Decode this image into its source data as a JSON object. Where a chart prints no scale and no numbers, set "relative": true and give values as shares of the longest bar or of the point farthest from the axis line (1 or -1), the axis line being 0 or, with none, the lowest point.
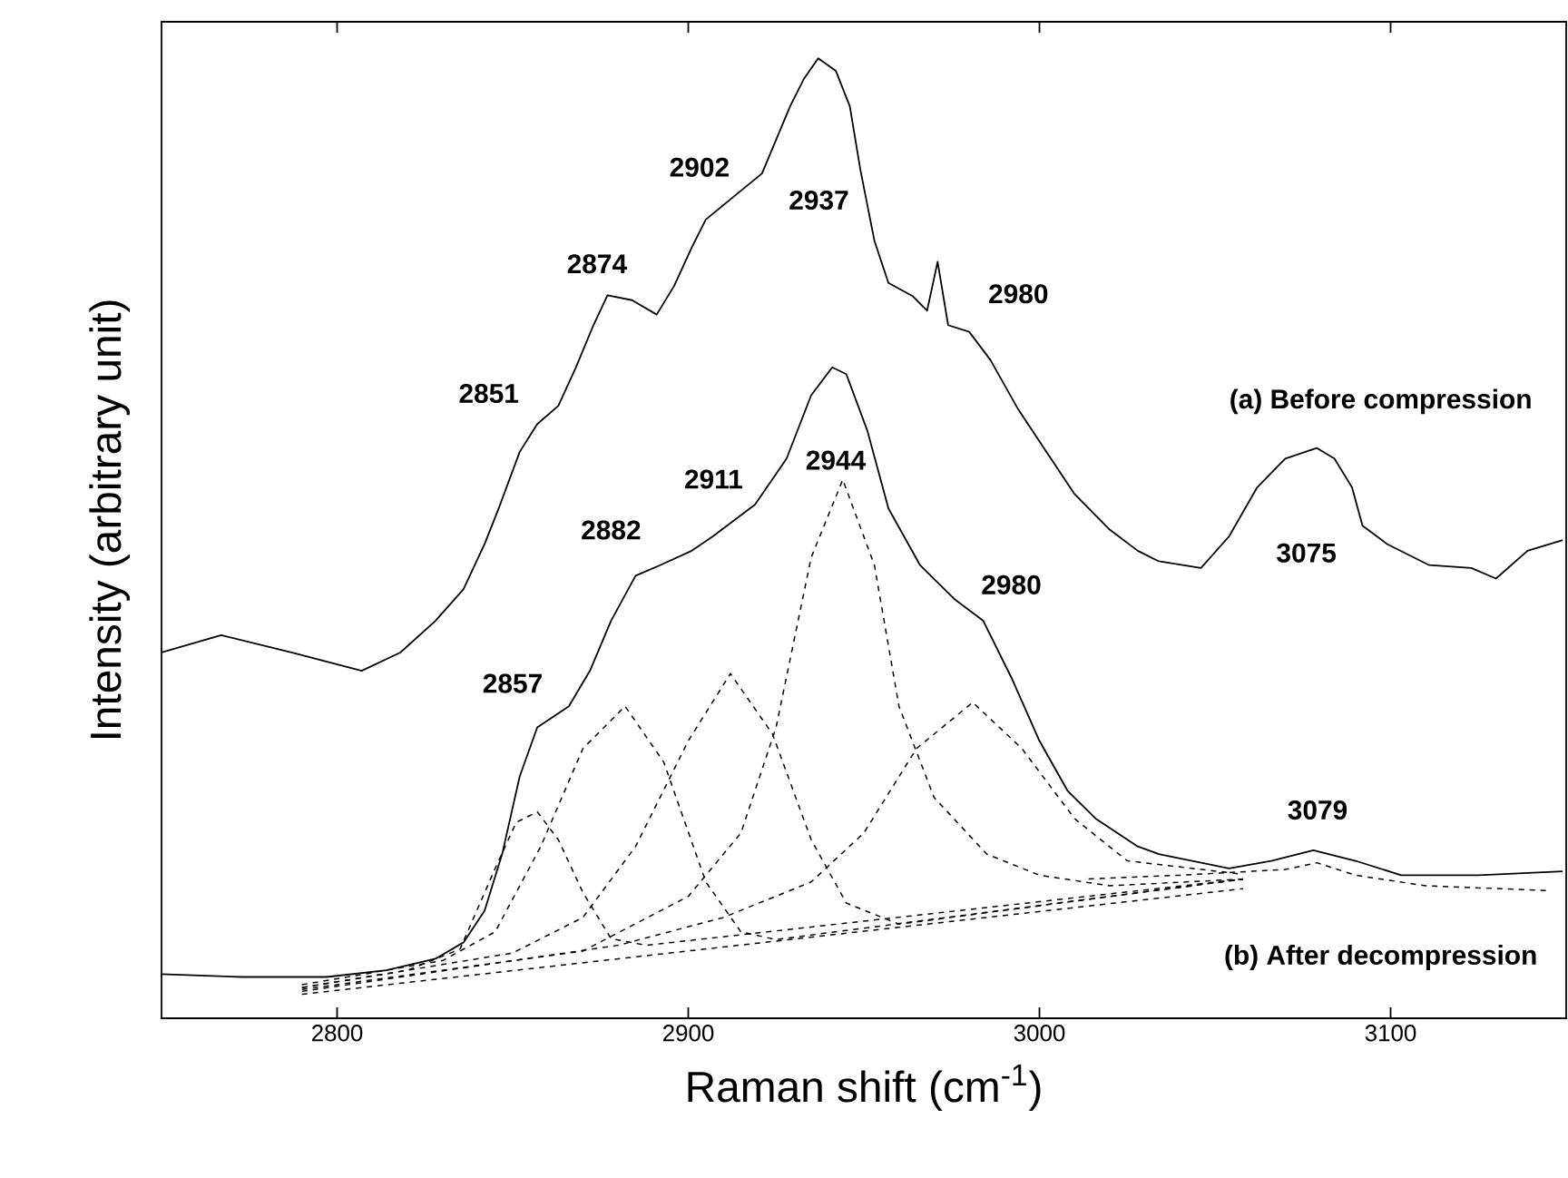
{
  "chart_data": {
    "type": "line",
    "relative": true,
    "xlabel": "Raman shift (cm$^{-1}$)",
    "ylabel": "Intensity (arbitrary unit)",
    "xlim": [
      2750,
      3150
    ],
    "xticks": [
      2800,
      2900,
      3000,
      3100
    ],
    "tick_labels": "x",
    "series": [
      {
        "color": "#000000",
        "line_style": "solid",
        "x": [
          2750,
          2767,
          2787,
          2807,
          2818,
          2828,
          2836,
          2842,
          2846,
          2852,
          2857,
          2863,
          2868,
          2873,
          2877,
          2884,
          2891,
          2896,
          2901,
          2905,
          2915,
          2921,
          2929,
          2933,
          2937,
          2942,
          2946,
          2949,
          2953,
          2957,
          2964,
          2968,
          2971,
          2974,
          2980,
          2986,
          2994,
          3002,
          3010,
          3020,
          3028,
          3034,
          3046,
          3054,
          3062,
          3070,
          3079,
          3084,
          3089,
          3092,
          3099,
          3111,
          3123,
          3130,
          3139,
          3149
        ],
        "values": [
          0.381,
          0.399,
          0.381,
          0.362,
          0.381,
          0.414,
          0.447,
          0.494,
          0.531,
          0.59,
          0.619,
          0.638,
          0.678,
          0.722,
          0.753,
          0.748,
          0.733,
          0.763,
          0.803,
          0.832,
          0.862,
          0.88,
          0.95,
          0.979,
          1.0,
          0.987,
          0.95,
          0.884,
          0.81,
          0.766,
          0.752,
          0.737,
          0.788,
          0.722,
          0.715,
          0.686,
          0.634,
          0.59,
          0.546,
          0.509,
          0.487,
          0.476,
          0.469,
          0.502,
          0.553,
          0.583,
          0.594,
          0.583,
          0.553,
          0.513,
          0.494,
          0.472,
          0.469,
          0.458,
          0.487,
          0.498
        ]
      },
      {
        "color": "#000000",
        "line_style": "solid",
        "x": [
          2750,
          2773,
          2797,
          2814,
          2828,
          2836,
          2842,
          2847,
          2852,
          2857,
          2866,
          2872,
          2878,
          2885,
          2892,
          2901,
          2907,
          2919,
          2928,
          2935,
          2941,
          2945,
          2951,
          2957,
          2966,
          2976,
          2984,
          2992,
          3000,
          3008,
          3016,
          3028,
          3034,
          3054,
          3066,
          3078,
          3090,
          3103,
          3125,
          3149
        ],
        "values": [
          0.046,
          0.043,
          0.043,
          0.05,
          0.062,
          0.079,
          0.112,
          0.171,
          0.252,
          0.303,
          0.325,
          0.362,
          0.414,
          0.461,
          0.472,
          0.487,
          0.502,
          0.535,
          0.583,
          0.649,
          0.678,
          0.671,
          0.612,
          0.531,
          0.472,
          0.436,
          0.414,
          0.355,
          0.289,
          0.237,
          0.208,
          0.179,
          0.171,
          0.156,
          0.164,
          0.175,
          0.164,
          0.149,
          0.149,
          0.153
        ]
      },
      {
        "color": "#000000",
        "line_style": "dashed",
        "x": [
          2790,
          2820,
          2835,
          2845,
          2851,
          2857,
          2863,
          2870,
          2878,
          2888,
          3058
        ],
        "values": [
          0.032,
          0.05,
          0.072,
          0.156,
          0.204,
          0.215,
          0.186,
          0.131,
          0.083,
          0.076,
          0.145
        ]
      },
      {
        "color": "#000000",
        "line_style": "dashed",
        "x": [
          2790,
          2830,
          2845,
          2858,
          2870,
          2882,
          2893,
          2905,
          2915,
          2925,
          3058
        ],
        "values": [
          0.035,
          0.06,
          0.09,
          0.179,
          0.281,
          0.325,
          0.267,
          0.142,
          0.09,
          0.082,
          0.145
        ]
      },
      {
        "color": "#000000",
        "line_style": "dashed",
        "x": [
          2790,
          2850,
          2870,
          2885,
          2900,
          2912,
          2924,
          2935,
          2945,
          2960,
          3058
        ],
        "values": [
          0.032,
          0.068,
          0.105,
          0.179,
          0.289,
          0.359,
          0.296,
          0.186,
          0.12,
          0.098,
          0.145
        ]
      },
      {
        "color": "#000000",
        "line_style": "dashed",
        "x": [
          2790,
          2870,
          2900,
          2915,
          2925,
          2935,
          2944,
          2953,
          2960,
          2970,
          2985,
          3000,
          3020,
          3058
        ],
        "values": [
          0.03,
          0.07,
          0.127,
          0.193,
          0.303,
          0.48,
          0.561,
          0.472,
          0.325,
          0.23,
          0.171,
          0.149,
          0.138,
          0.145
        ]
      },
      {
        "color": "#000000",
        "line_style": "dashed",
        "x": [
          2790,
          2880,
          2910,
          2935,
          2950,
          2965,
          2981,
          2995,
          3010,
          3025,
          3058
        ],
        "values": [
          0.028,
          0.076,
          0.105,
          0.142,
          0.193,
          0.281,
          0.329,
          0.281,
          0.208,
          0.164,
          0.15
        ]
      },
      {
        "color": "#000000",
        "line_style": "dashed",
        "x": [
          2790,
          3058
        ],
        "values": [
          0.025,
          0.135
        ]
      },
      {
        "color": "#000000",
        "line_style": "dashed",
        "x": [
          3014,
          3040,
          3060,
          3070,
          3079,
          3090,
          3110,
          3145
        ],
        "values": [
          0.145,
          0.149,
          0.153,
          0.155,
          0.162,
          0.149,
          0.138,
          0.133
        ]
      }
    ],
    "annotations": [
      "2851",
      "2874",
      "2902",
      "2937",
      "2980",
      "(a) Before compression",
      "3075",
      "2857",
      "2882",
      "2911",
      "2944",
      "2980",
      "3079",
      "(b) After decompression"
    ]
  }
}
